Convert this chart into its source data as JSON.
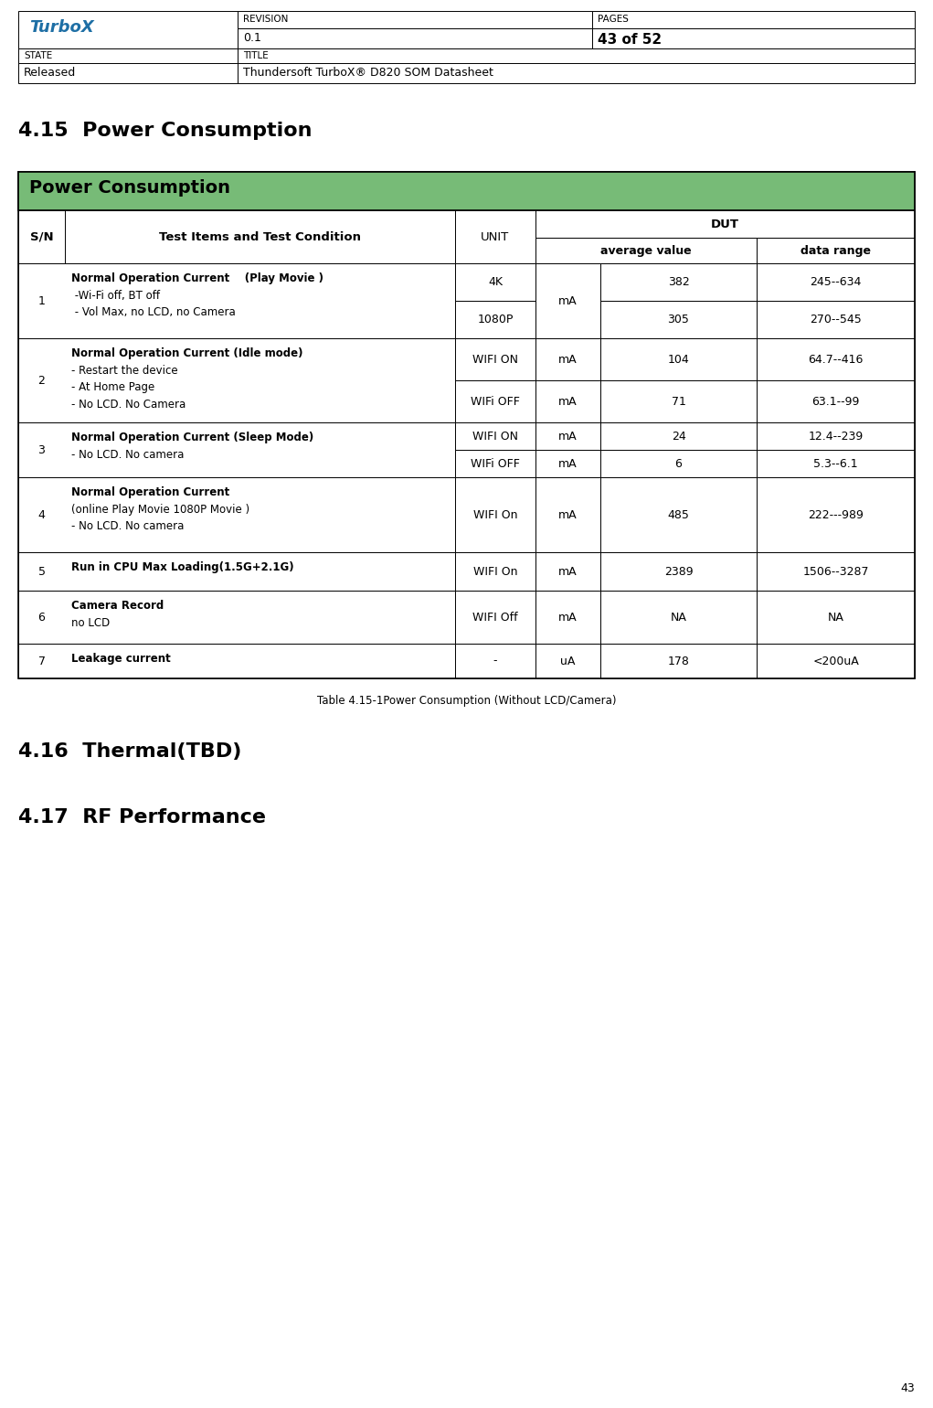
{
  "page_width": 10.21,
  "page_height": 15.4,
  "header": {
    "revision_label": "REVISION",
    "pages_label": "PAGES",
    "revision_value": "0.1",
    "pages_value": "43 of 52",
    "state_label": "STATE",
    "title_label": "TITLE",
    "state_value": "Released",
    "title_value": "Thundersoft TurboX® D820 SOM Datasheet"
  },
  "section_415_title": "4.15  Power Consumption",
  "table_header_title": "Power Consumption",
  "table_header_bg": "#77bb77",
  "rows": [
    {
      "sn": "1",
      "desc_lines": [
        {
          "text": "Normal Operation Current    (Play Movie )",
          "bold": true
        },
        {
          "text": " -Wi-Fi off, BT off",
          "bold": false
        },
        {
          "text": " - Vol Max, no LCD, no Camera",
          "bold": false
        }
      ],
      "sub_rows": [
        {
          "unit_label": "4K",
          "unit": "mA",
          "avg": "382",
          "range": "245--634"
        },
        {
          "unit_label": "1080P",
          "unit": "mA",
          "avg": "305",
          "range": "270--545"
        }
      ],
      "unit_merged": true
    },
    {
      "sn": "2",
      "desc_lines": [
        {
          "text": "Normal Operation Current (Idle mode)",
          "bold": true
        },
        {
          "text": "- Restart the device",
          "bold": false
        },
        {
          "text": "- At Home Page",
          "bold": false
        },
        {
          "text": "- No LCD. No Camera",
          "bold": false
        }
      ],
      "sub_rows": [
        {
          "unit_label": "WIFI ON",
          "unit": "mA",
          "avg": "104",
          "range": "64.7--416"
        },
        {
          "unit_label": "WIFi OFF",
          "unit": "mA",
          "avg": "71",
          "range": "63.1--99"
        }
      ],
      "unit_merged": false
    },
    {
      "sn": "3",
      "desc_lines": [
        {
          "text": "Normal Operation Current (Sleep Mode)",
          "bold": true
        },
        {
          "text": "- No LCD. No camera",
          "bold": false
        }
      ],
      "sub_rows": [
        {
          "unit_label": "WIFI ON",
          "unit": "mA",
          "avg": "24",
          "range": "12.4--239"
        },
        {
          "unit_label": "WIFi OFF",
          "unit": "mA",
          "avg": "6",
          "range": "5.3--6.1"
        }
      ],
      "unit_merged": false
    },
    {
      "sn": "4",
      "desc_lines": [
        {
          "text": "Normal Operation Current",
          "bold": true
        },
        {
          "text": "(online Play Movie 1080P Movie )",
          "bold": false
        },
        {
          "text": "- No LCD. No camera",
          "bold": false
        }
      ],
      "sub_rows": [
        {
          "unit_label": "WIFI On",
          "unit": "mA",
          "avg": "485",
          "range": "222---989"
        }
      ],
      "unit_merged": false
    },
    {
      "sn": "5",
      "desc_lines": [
        {
          "text": "Run in CPU Max Loading(1.5G+2.1G)",
          "bold": true
        }
      ],
      "sub_rows": [
        {
          "unit_label": "WIFI On",
          "unit": "mA",
          "avg": "2389",
          "range": "1506--3287"
        }
      ],
      "unit_merged": false
    },
    {
      "sn": "6",
      "desc_lines": [
        {
          "text": "Camera Record",
          "bold": true
        },
        {
          "text": "no LCD",
          "bold": false
        }
      ],
      "sub_rows": [
        {
          "unit_label": "WIFI Off",
          "unit": "mA",
          "avg": "NA",
          "range": "NA"
        }
      ],
      "unit_merged": false
    },
    {
      "sn": "7",
      "desc_lines": [
        {
          "text": "Leakage current",
          "bold": true
        }
      ],
      "sub_rows": [
        {
          "unit_label": "-",
          "unit": "uA",
          "avg": "178",
          "range": "<200uA"
        }
      ],
      "unit_merged": false
    }
  ],
  "table_caption": "Table 4.15-1Power Consumption (Without LCD/Camera)",
  "section_416_title": "4.16  Thermal(TBD)",
  "section_417_title": "4.17  RF Performance",
  "page_number": "43",
  "bg_white": "#ffffff",
  "border_color": "#000000"
}
